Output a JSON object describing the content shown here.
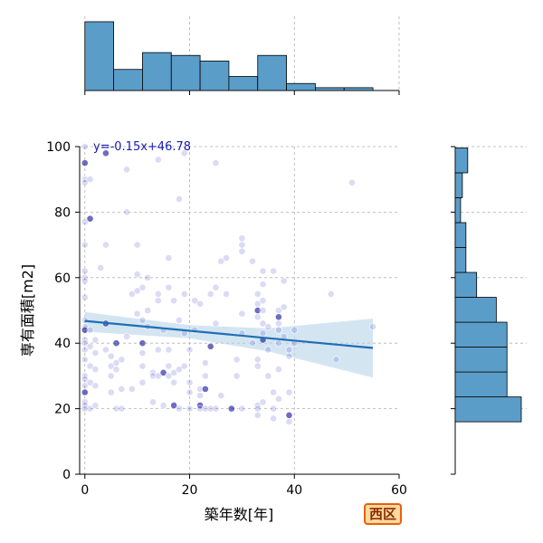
{
  "chart_data": {
    "type": "scatter",
    "xlabel": "築年数[年]",
    "ylabel": "専有面積[m2]",
    "xlim": [
      -1,
      60
    ],
    "ylim": [
      0,
      100
    ],
    "x_ticks": [
      0,
      20,
      40,
      60
    ],
    "y_ticks": [
      0,
      20,
      40,
      60,
      80,
      100
    ],
    "grid": true,
    "regression_label": "y=-0.15x+46.78",
    "regression": {
      "slope": -0.15,
      "intercept": 46.78,
      "x_range": [
        0,
        55
      ]
    },
    "confidence_band": [
      [
        0,
        49.5,
        43.5
      ],
      [
        20,
        45.5,
        41.5
      ],
      [
        35,
        44.5,
        37.5
      ],
      [
        55,
        47.5,
        29.5
      ]
    ],
    "marginal_x": {
      "bin_edges": [
        0,
        5.5,
        11,
        16.5,
        22,
        27.5,
        33,
        38.5,
        44,
        49.5,
        55
      ],
      "counts": [
        49,
        15,
        27,
        25,
        21,
        10,
        25,
        5,
        2,
        2
      ]
    },
    "marginal_y": {
      "bin_edges": [
        16,
        23.6,
        31.2,
        38.8,
        46.4,
        54,
        61.6,
        69.2,
        76.8,
        84.4,
        92,
        99.6
      ],
      "counts": [
        37,
        29,
        29,
        29,
        23,
        12,
        6,
        6,
        3,
        4,
        7
      ]
    },
    "points": [
      [
        0,
        100
      ],
      [
        0,
        95
      ],
      [
        0,
        90
      ],
      [
        0,
        89
      ],
      [
        1,
        90
      ],
      [
        0,
        77
      ],
      [
        1,
        78
      ],
      [
        0,
        70
      ],
      [
        0,
        62
      ],
      [
        0,
        60
      ],
      [
        0,
        59
      ],
      [
        0,
        54
      ],
      [
        0,
        47
      ],
      [
        0,
        45
      ],
      [
        0,
        44
      ],
      [
        0,
        41
      ],
      [
        0,
        40
      ],
      [
        0,
        38
      ],
      [
        0,
        35
      ],
      [
        0,
        30
      ],
      [
        0,
        29
      ],
      [
        0,
        27
      ],
      [
        0,
        25
      ],
      [
        0,
        22
      ],
      [
        0,
        21
      ],
      [
        0,
        20
      ],
      [
        1,
        20
      ],
      [
        1,
        33
      ],
      [
        1,
        39
      ],
      [
        1,
        28
      ],
      [
        1,
        44
      ],
      [
        2,
        41
      ],
      [
        2,
        27
      ],
      [
        2,
        32
      ],
      [
        2,
        21
      ],
      [
        2,
        37
      ],
      [
        3,
        63
      ],
      [
        4,
        98
      ],
      [
        4,
        70
      ],
      [
        4,
        38
      ],
      [
        4,
        46
      ],
      [
        5,
        33
      ],
      [
        5,
        30
      ],
      [
        5,
        36
      ],
      [
        5,
        25
      ],
      [
        6,
        40
      ],
      [
        6,
        32
      ],
      [
        6,
        34
      ],
      [
        6,
        20
      ],
      [
        7,
        20
      ],
      [
        7,
        26
      ],
      [
        7,
        35
      ],
      [
        8,
        42
      ],
      [
        8,
        93
      ],
      [
        8,
        80
      ],
      [
        9,
        55
      ],
      [
        9,
        26
      ],
      [
        10,
        70
      ],
      [
        10,
        61
      ],
      [
        10,
        56
      ],
      [
        10,
        49
      ],
      [
        11,
        47
      ],
      [
        11,
        40
      ],
      [
        11,
        37
      ],
      [
        11,
        33
      ],
      [
        11,
        28
      ],
      [
        11,
        57
      ],
      [
        12,
        60
      ],
      [
        12,
        50
      ],
      [
        12,
        45
      ],
      [
        13,
        31
      ],
      [
        13,
        30
      ],
      [
        13,
        22
      ],
      [
        14,
        96
      ],
      [
        14,
        55
      ],
      [
        14,
        53
      ],
      [
        14,
        38
      ],
      [
        14,
        30
      ],
      [
        15,
        31
      ],
      [
        15,
        21
      ],
      [
        15,
        44
      ],
      [
        16,
        66
      ],
      [
        16,
        57
      ],
      [
        16,
        38
      ],
      [
        16,
        33
      ],
      [
        16,
        30
      ],
      [
        17,
        28
      ],
      [
        17,
        31
      ],
      [
        17,
        21
      ],
      [
        17,
        53
      ],
      [
        18,
        84
      ],
      [
        18,
        47
      ],
      [
        18,
        32
      ],
      [
        18,
        20
      ],
      [
        19,
        98
      ],
      [
        19,
        55
      ],
      [
        19,
        43
      ],
      [
        19,
        33
      ],
      [
        20,
        20
      ],
      [
        20,
        25
      ],
      [
        20,
        38
      ],
      [
        20,
        28
      ],
      [
        21,
        53
      ],
      [
        21,
        44
      ],
      [
        22,
        21
      ],
      [
        22,
        26
      ],
      [
        22,
        20
      ],
      [
        22,
        24
      ],
      [
        22,
        52
      ],
      [
        23,
        26
      ],
      [
        23,
        34
      ],
      [
        23,
        30
      ],
      [
        23,
        20
      ],
      [
        24,
        55
      ],
      [
        24,
        39
      ],
      [
        24,
        20
      ],
      [
        25,
        95
      ],
      [
        25,
        20
      ],
      [
        25,
        46
      ],
      [
        25,
        57
      ],
      [
        26,
        65
      ],
      [
        26,
        24
      ],
      [
        27,
        66
      ],
      [
        27,
        55
      ],
      [
        28,
        20
      ],
      [
        29,
        30
      ],
      [
        29,
        35
      ],
      [
        30,
        72
      ],
      [
        30,
        70
      ],
      [
        30,
        68
      ],
      [
        30,
        49
      ],
      [
        30,
        43
      ],
      [
        30,
        20
      ],
      [
        32,
        65
      ],
      [
        32,
        40
      ],
      [
        33,
        55
      ],
      [
        33,
        52
      ],
      [
        33,
        50
      ],
      [
        33,
        48
      ],
      [
        33,
        35
      ],
      [
        33,
        33
      ],
      [
        33,
        21
      ],
      [
        33,
        20
      ],
      [
        33,
        18
      ],
      [
        34,
        62
      ],
      [
        34,
        58
      ],
      [
        34,
        53
      ],
      [
        34,
        50
      ],
      [
        34,
        46
      ],
      [
        34,
        43
      ],
      [
        34,
        41
      ],
      [
        34,
        22
      ],
      [
        35,
        45
      ],
      [
        35,
        38
      ],
      [
        35,
        30
      ],
      [
        36,
        62
      ],
      [
        36,
        25
      ],
      [
        36,
        20
      ],
      [
        36,
        17
      ],
      [
        37,
        50
      ],
      [
        37,
        48
      ],
      [
        37,
        46
      ],
      [
        37,
        44
      ],
      [
        37,
        40
      ],
      [
        37,
        32
      ],
      [
        37,
        23
      ],
      [
        38,
        59
      ],
      [
        38,
        51
      ],
      [
        38,
        42
      ],
      [
        39,
        38
      ],
      [
        39,
        36
      ],
      [
        39,
        25
      ],
      [
        39,
        18
      ],
      [
        39,
        16
      ],
      [
        40,
        44
      ],
      [
        40,
        40
      ],
      [
        47,
        55
      ],
      [
        48,
        35
      ],
      [
        51,
        89
      ],
      [
        55,
        45
      ]
    ],
    "highlight_indices": [
      1,
      6,
      14,
      22,
      37,
      40,
      45,
      62,
      78,
      88,
      104,
      109,
      114,
      124,
      137,
      150,
      160,
      172
    ],
    "badge_label": "西区"
  },
  "colors": {
    "point": "#5a5ad0",
    "point_dark": "#1f1fa0",
    "regression_line": "#1f6fb5",
    "band": "#b8d3ea",
    "hist_fill": "#5b9dc9",
    "regression_label": "#1a1ab0",
    "grid": "#b0b0b0"
  }
}
